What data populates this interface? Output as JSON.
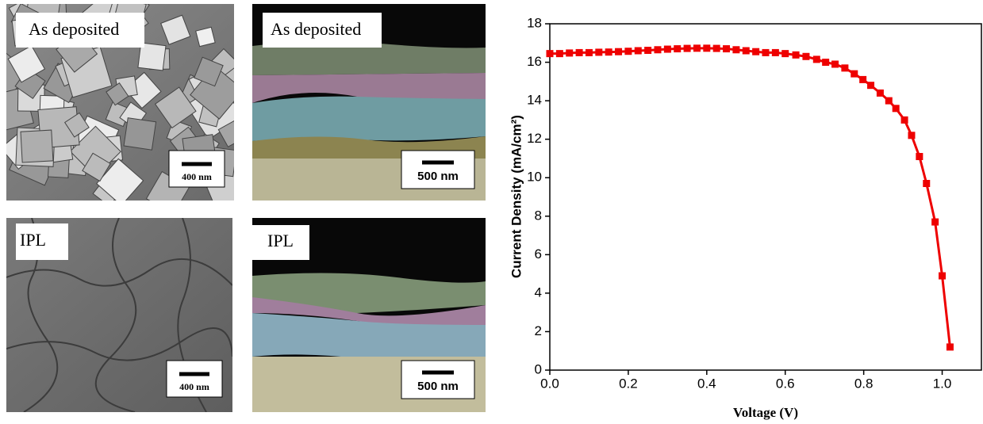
{
  "panels": [
    {
      "label": "As deposited",
      "scale": "400 nm"
    },
    {
      "label": "As deposited",
      "scale": "500 nm"
    },
    {
      "label": "IPL",
      "scale": "400 nm"
    },
    {
      "label": "IPL",
      "scale": "500 nm"
    }
  ],
  "chart_data": {
    "type": "line",
    "x_label": "Voltage (V)",
    "y_label": "Current Density (mA/cm²)",
    "color": "#ee0000",
    "x": [
      0,
      0.025,
      0.05,
      0.075,
      0.1,
      0.125,
      0.15,
      0.175,
      0.2,
      0.225,
      0.25,
      0.275,
      0.3,
      0.325,
      0.35,
      0.375,
      0.4,
      0.425,
      0.45,
      0.475,
      0.5,
      0.525,
      0.55,
      0.575,
      0.6,
      0.627,
      0.653,
      0.68,
      0.703,
      0.727,
      0.752,
      0.776,
      0.798,
      0.818,
      0.842,
      0.864,
      0.882,
      0.904,
      0.922,
      0.942,
      0.96,
      0.982,
      1.0,
      1.02
    ],
    "values": [
      16.45,
      16.45,
      16.48,
      16.5,
      16.5,
      16.52,
      16.53,
      16.55,
      16.57,
      16.6,
      16.62,
      16.65,
      16.68,
      16.7,
      16.72,
      16.73,
      16.73,
      16.72,
      16.7,
      16.65,
      16.6,
      16.55,
      16.5,
      16.5,
      16.45,
      16.38,
      16.3,
      16.15,
      16.0,
      15.9,
      15.7,
      15.4,
      15.1,
      14.8,
      14.4,
      14.0,
      13.6,
      13.0,
      12.2,
      11.1,
      9.7,
      7.7,
      4.9,
      1.2
    ],
    "xlim": [
      0,
      1.1
    ],
    "xticks": [
      {
        "value": 0,
        "label": "0.0"
      },
      0.2,
      0.4,
      0.6,
      0.8,
      {
        "value": 1,
        "label": "1.0"
      }
    ],
    "ylim": [
      0,
      18
    ],
    "yticks": [
      0,
      2,
      4,
      6,
      8,
      10,
      12,
      14,
      16,
      18
    ]
  }
}
